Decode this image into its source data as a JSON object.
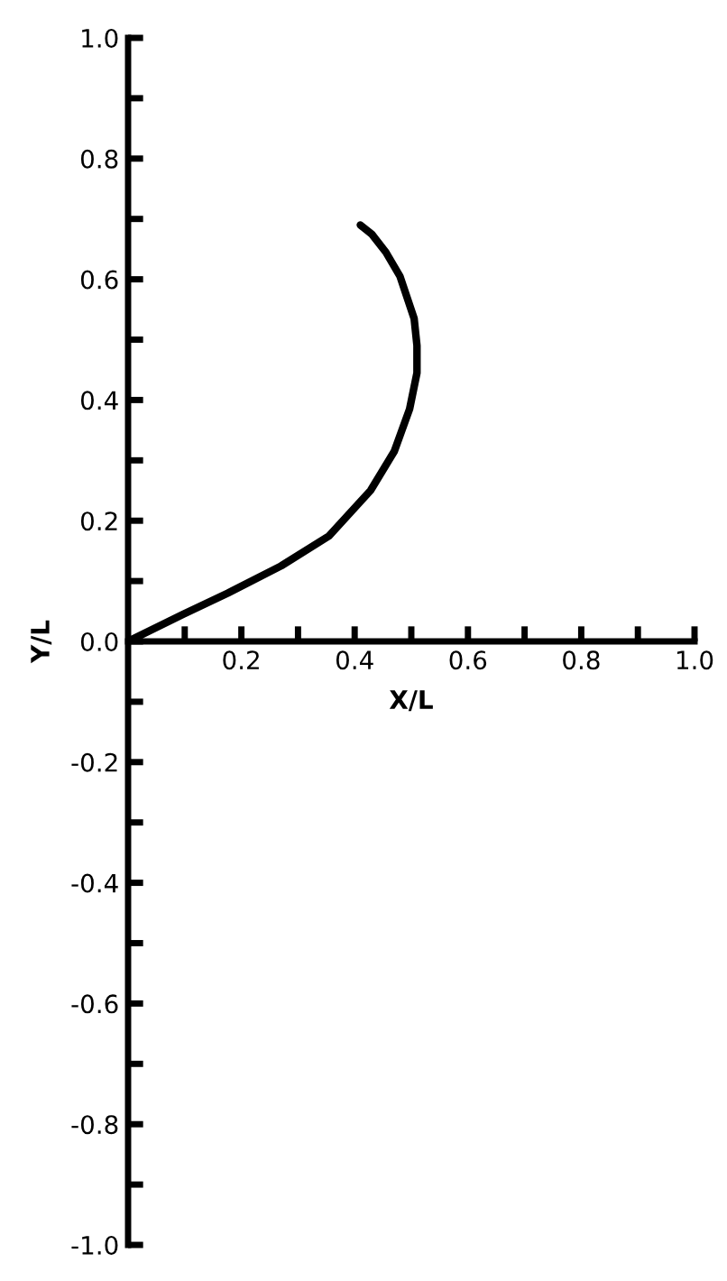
{
  "chart_data": {
    "type": "line",
    "xlabel": "X/L",
    "ylabel": "Y/L",
    "x": [
      0,
      0.097,
      0.176,
      0.27,
      0.355,
      0.428,
      0.47,
      0.497,
      0.51,
      0.51,
      0.505,
      0.48,
      0.455,
      0.43,
      0.41
    ],
    "series": [
      {
        "color": "#000000",
        "values": [
          0,
          0.045,
          0.08,
          0.125,
          0.175,
          0.25,
          0.315,
          0.385,
          0.445,
          0.49,
          0.535,
          0.605,
          0.645,
          0.675,
          0.69
        ]
      }
    ],
    "xlim": [
      0,
      1.0
    ],
    "ylim": [
      -1.0,
      1.0
    ],
    "xticks": [
      {
        "value": 0.1,
        "label": null
      },
      {
        "value": 0.2,
        "label": "0.2"
      },
      {
        "value": 0.3,
        "label": null
      },
      {
        "value": 0.4,
        "label": "0.4"
      },
      {
        "value": 0.5,
        "label": null
      },
      {
        "value": 0.6,
        "label": "0.6"
      },
      {
        "value": 0.7,
        "label": null
      },
      {
        "value": 0.8,
        "label": "0.8"
      },
      {
        "value": 0.9,
        "label": null
      },
      {
        "value": 1.0,
        "label": "1.0"
      }
    ],
    "yticks": [
      {
        "value": -1.0,
        "label": "-1.0"
      },
      {
        "value": -0.9,
        "label": null
      },
      {
        "value": -0.8,
        "label": "-0.8"
      },
      {
        "value": -0.7,
        "label": null
      },
      {
        "value": -0.6,
        "label": "-0.6"
      },
      {
        "value": -0.5,
        "label": null
      },
      {
        "value": -0.4,
        "label": "-0.4"
      },
      {
        "value": -0.3,
        "label": null
      },
      {
        "value": -0.2,
        "label": "-0.2"
      },
      {
        "value": -0.1,
        "label": null
      },
      {
        "value": 0.0,
        "label": "0.0"
      },
      {
        "value": 0.1,
        "label": null
      },
      {
        "value": 0.2,
        "label": "0.2"
      },
      {
        "value": 0.3,
        "label": null
      },
      {
        "value": 0.4,
        "label": "0.4"
      },
      {
        "value": 0.5,
        "label": null
      },
      {
        "value": 0.6,
        "label": "0.6"
      },
      {
        "value": 0.7,
        "label": null
      },
      {
        "value": 0.8,
        "label": "0.8"
      },
      {
        "value": 0.9,
        "label": null
      },
      {
        "value": 1.0,
        "label": "1.0"
      }
    ],
    "grid": false,
    "legend": false,
    "marker": "none",
    "line_style": "solid"
  }
}
